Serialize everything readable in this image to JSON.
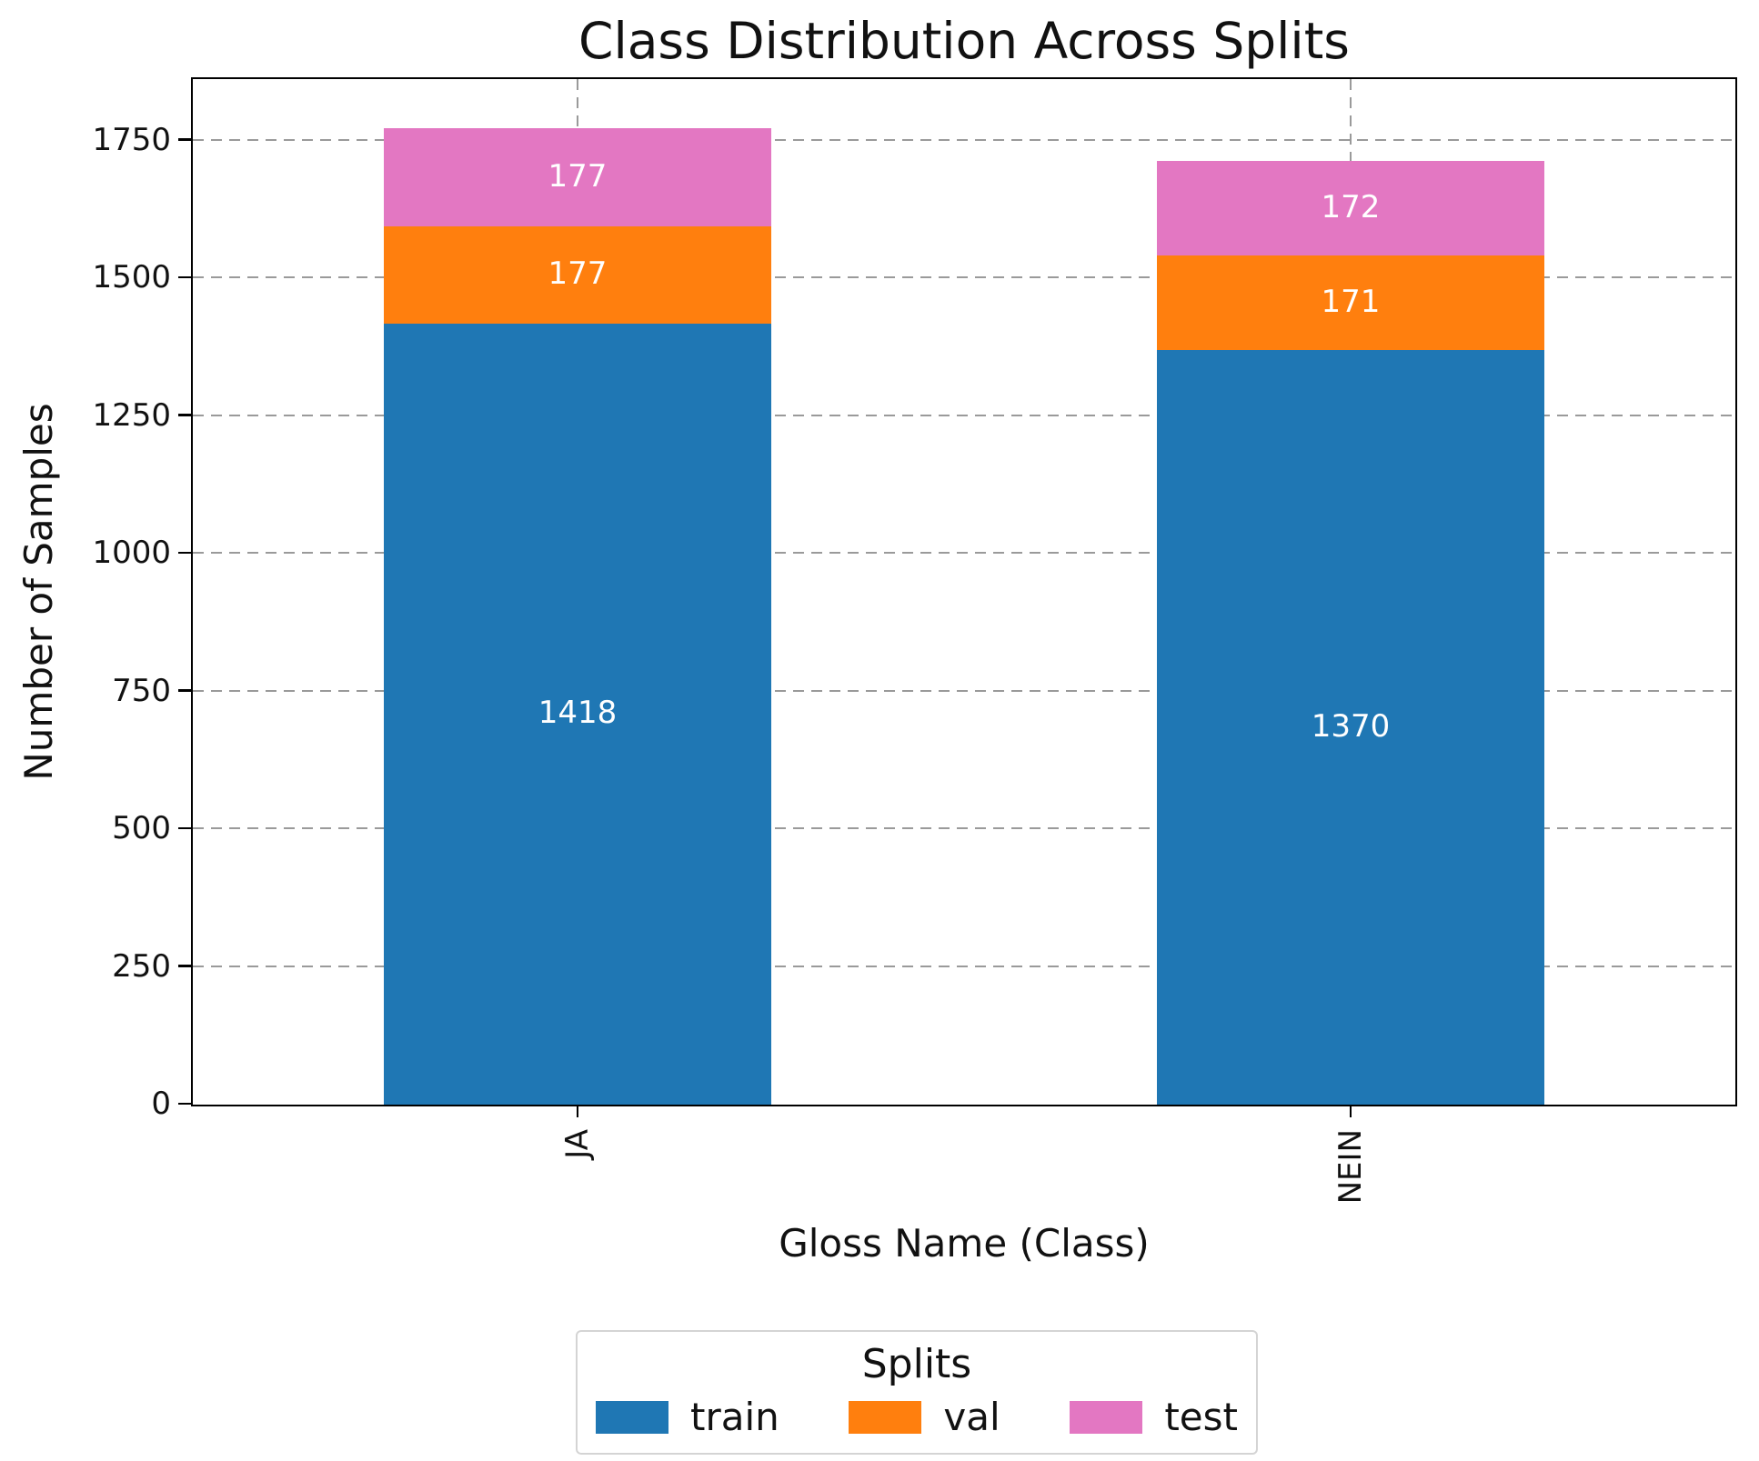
{
  "chart_data": {
    "type": "bar",
    "stacked": true,
    "title": "Class Distribution Across Splits",
    "xlabel": "Gloss Name (Class)",
    "ylabel": "Number of Samples",
    "categories": [
      "JA",
      "NEIN"
    ],
    "series": [
      {
        "name": "train",
        "color": "#1f77b4",
        "values": [
          1418,
          1370
        ]
      },
      {
        "name": "val",
        "color": "#ff7f0e",
        "values": [
          177,
          171
        ]
      },
      {
        "name": "test",
        "color": "#e377c2",
        "values": [
          177,
          172
        ]
      }
    ],
    "totals": [
      1772,
      1713
    ],
    "y_ticks": [
      0,
      250,
      500,
      750,
      1000,
      1250,
      1500,
      1750
    ],
    "ylim": [
      0,
      1860
    ],
    "grid": true,
    "grid_style": "dashed",
    "xtick_rotation": 90,
    "legend": {
      "title": "Splits",
      "entries": [
        "train",
        "val",
        "test"
      ],
      "position": "bottom-center"
    }
  }
}
